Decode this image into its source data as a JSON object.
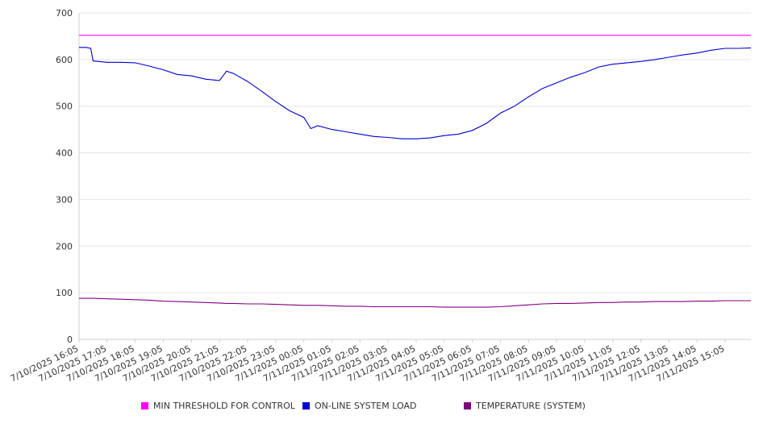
{
  "chart_data": {
    "type": "line",
    "title": "",
    "xlabel": "",
    "ylabel": "",
    "ylim": [
      0,
      700
    ],
    "y_ticks": [
      0,
      100,
      200,
      300,
      400,
      500,
      600,
      700
    ],
    "grid": "horizontal",
    "legend_position": "bottom",
    "x_tick_labels": [
      "7/10/2025 16:05",
      "7/10/2025 17:05",
      "7/10/2025 18:05",
      "7/10/2025 19:05",
      "7/10/2025 20:05",
      "7/10/2025 21:05",
      "7/10/2025 22:05",
      "7/10/2025 23:05",
      "7/11/2025 00:05",
      "7/11/2025 01:05",
      "7/11/2025 02:05",
      "7/11/2025 03:05",
      "7/11/2025 04:05",
      "7/11/2025 05:05",
      "7/11/2025 06:05",
      "7/11/2025 07:05",
      "7/11/2025 08:05",
      "7/11/2025 09:05",
      "7/11/2025 10:05",
      "7/11/2025 11:05",
      "7/11/2025 12:05",
      "7/11/2025 13:05",
      "7/11/2025 14:05",
      "7/11/2025 15:05"
    ],
    "x": [
      "16:05",
      "16:20",
      "16:30",
      "16:35",
      "17:05",
      "17:35",
      "18:05",
      "18:35",
      "19:05",
      "19:35",
      "20:05",
      "20:35",
      "21:05",
      "21:20",
      "21:35",
      "22:05",
      "22:35",
      "23:05",
      "23:35",
      "00:05",
      "00:20",
      "00:35",
      "01:05",
      "01:35",
      "02:05",
      "02:35",
      "03:05",
      "03:35",
      "04:05",
      "04:35",
      "05:05",
      "05:35",
      "06:05",
      "06:35",
      "07:05",
      "07:35",
      "08:05",
      "08:35",
      "09:05",
      "09:35",
      "10:05",
      "10:35",
      "11:05",
      "11:35",
      "12:05",
      "12:35",
      "13:05",
      "13:35",
      "14:05",
      "14:35",
      "15:05",
      "15:35",
      "16:00"
    ],
    "series": [
      {
        "name": "MIN THRESHOLD FOR CONTROL",
        "color": "#ff00ff",
        "values": [
          652,
          652,
          652,
          652,
          652,
          652,
          652,
          652,
          652,
          652,
          652,
          652,
          652,
          652,
          652,
          652,
          652,
          652,
          652,
          652,
          652,
          652,
          652,
          652,
          652,
          652,
          652,
          652,
          652,
          652,
          652,
          652,
          652,
          652,
          652,
          652,
          652,
          652,
          652,
          652,
          652,
          652,
          652,
          652,
          652,
          652,
          652,
          652,
          652,
          652,
          652,
          652,
          652
        ]
      },
      {
        "name": "ON-LINE SYSTEM LOAD",
        "color": "#0000cc",
        "values": [
          626,
          626,
          624,
          597,
          594,
          594,
          593,
          586,
          578,
          568,
          565,
          558,
          555,
          575,
          570,
          553,
          532,
          510,
          490,
          476,
          452,
          458,
          450,
          445,
          440,
          435,
          433,
          430,
          430,
          432,
          437,
          440,
          448,
          463,
          485,
          500,
          520,
          538,
          550,
          562,
          572,
          584,
          590,
          593,
          596,
          600,
          605,
          610,
          614,
          620,
          624,
          624,
          625
        ]
      },
      {
        "name": "TEMPERATURE (SYSTEM)",
        "color": "#800080",
        "values": [
          88,
          88,
          88,
          88,
          87,
          86,
          85,
          84,
          82,
          81,
          80,
          79,
          78,
          77,
          77,
          76,
          76,
          75,
          74,
          73,
          73,
          73,
          72,
          71,
          71,
          70,
          70,
          70,
          70,
          70,
          69,
          69,
          69,
          69,
          70,
          72,
          74,
          76,
          77,
          77,
          78,
          79,
          79,
          80,
          80,
          81,
          81,
          81,
          82,
          82,
          83,
          83,
          83
        ]
      }
    ]
  }
}
